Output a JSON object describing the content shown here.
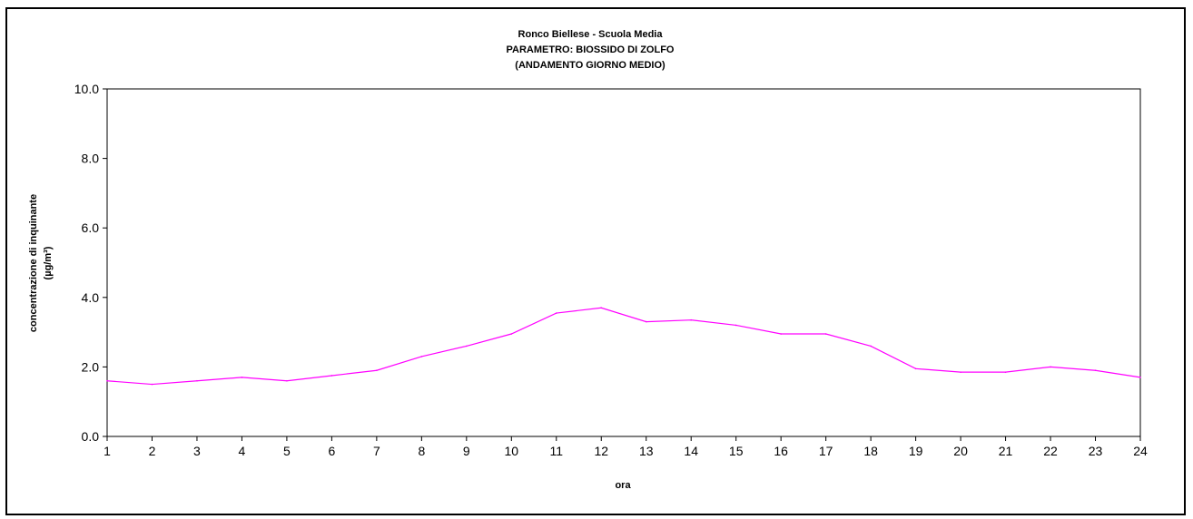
{
  "chart_data": {
    "type": "line",
    "title_lines": [
      "Ronco Biellese - Scuola Media",
      "PARAMETRO: BIOSSIDO DI ZOLFO",
      "(ANDAMENTO GIORNO MEDIO)"
    ],
    "xlabel": "ora",
    "ylabel_lines": [
      "concentrazione di inquinante",
      "(µg/m³)"
    ],
    "x": [
      1,
      2,
      3,
      4,
      5,
      6,
      7,
      8,
      9,
      10,
      11,
      12,
      13,
      14,
      15,
      16,
      17,
      18,
      19,
      20,
      21,
      22,
      23,
      24
    ],
    "y_ticks": [
      "0.0",
      "2.0",
      "4.0",
      "6.0",
      "8.0",
      "10.0"
    ],
    "ylim": [
      0,
      10
    ],
    "grid": false,
    "legend": "none",
    "series": [
      {
        "color": "#ff00ff",
        "values": [
          1.6,
          1.5,
          1.6,
          1.7,
          1.6,
          1.75,
          1.9,
          2.3,
          2.6,
          2.95,
          3.55,
          3.7,
          3.3,
          3.35,
          3.2,
          2.95,
          2.95,
          2.6,
          1.95,
          1.85,
          1.85,
          2.0,
          1.9,
          1.7
        ]
      }
    ]
  }
}
